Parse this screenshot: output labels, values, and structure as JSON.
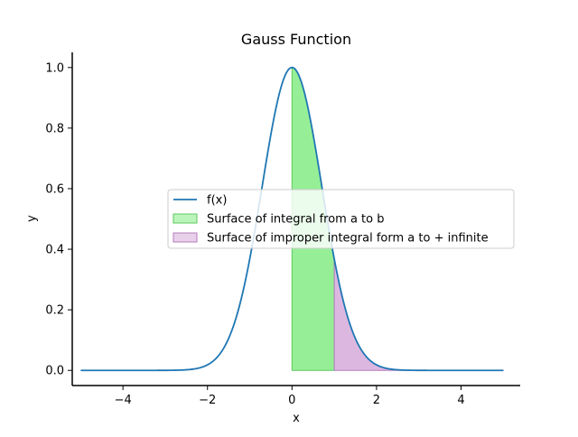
{
  "chart_data": {
    "type": "line",
    "title": "Gauss Function",
    "xlabel": "x",
    "ylabel": "y",
    "xlim": [
      -5.2,
      5.4
    ],
    "ylim": [
      -0.05,
      1.05
    ],
    "xticks": [
      -4,
      -2,
      0,
      2,
      4
    ],
    "xtick_labels": [
      "−4",
      "−2",
      "0",
      "2",
      "4"
    ],
    "yticks": [
      0.0,
      0.2,
      0.4,
      0.6,
      0.8,
      1.0
    ],
    "ytick_labels": [
      "0.0",
      "0.2",
      "0.4",
      "0.6",
      "0.8",
      "1.0"
    ],
    "grid": false,
    "legend_position": "center-right",
    "function": "exp(-x^2)",
    "domain": [
      -5,
      5
    ],
    "series": [
      {
        "name": "f(x)",
        "kind": "line",
        "color": "#1f77b4"
      },
      {
        "name": "Surface of integral from a to b",
        "kind": "fill",
        "from": 0,
        "to": 1,
        "color": "#90ee90"
      },
      {
        "name": "Surface of improper integral form a to + infinite",
        "kind": "fill",
        "from": 1,
        "to": 5,
        "color": "#d8b0dd"
      }
    ]
  }
}
